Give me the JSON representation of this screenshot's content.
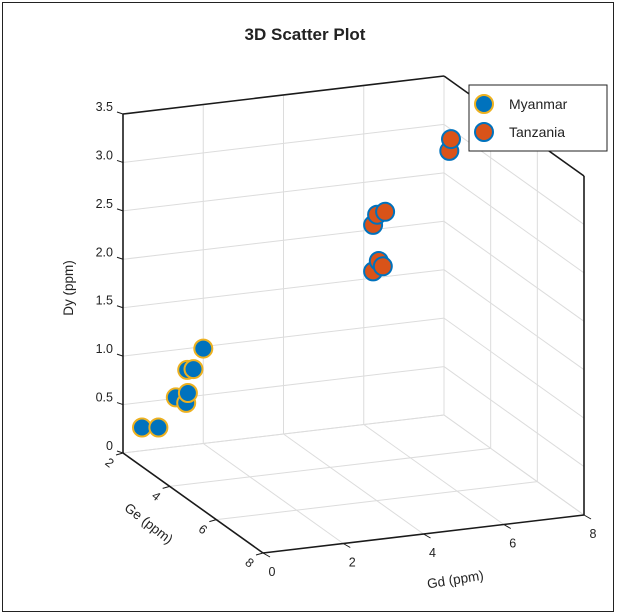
{
  "chart_data": {
    "type": "scatter",
    "subtype": "3d-scatter",
    "title": "3D Scatter Plot",
    "xlabel": "Gd (ppm)",
    "ylabel": "Ge (ppm)",
    "zlabel": "Dy (ppm)",
    "x_ticks": [
      "0",
      "2",
      "4",
      "6",
      "8"
    ],
    "y_ticks": [
      "2",
      "4",
      "6",
      "8"
    ],
    "z_ticks": [
      "0",
      "0.5",
      "1.0",
      "1.5",
      "2.0",
      "2.5",
      "3.0",
      "3.5"
    ],
    "xlim": [
      0,
      8
    ],
    "ylim": [
      2,
      8
    ],
    "zlim": [
      0,
      3.5
    ],
    "grid": true,
    "legend_position": "top-right",
    "series": [
      {
        "name": "Myanmar",
        "color": "#0072BD",
        "edge_color": "#EDB120",
        "points": [
          {
            "x": 0.3,
            "y": 2.3,
            "z": 0.3
          },
          {
            "x": 0.65,
            "y": 2.4,
            "z": 0.3
          },
          {
            "x": 1.2,
            "y": 2.2,
            "z": 0.55
          },
          {
            "x": 1.4,
            "y": 2.3,
            "z": 0.5
          },
          {
            "x": 1.5,
            "y": 2.2,
            "z": 0.58
          },
          {
            "x": 1.6,
            "y": 2.0,
            "z": 0.78
          },
          {
            "x": 1.7,
            "y": 2.1,
            "z": 0.8
          },
          {
            "x": 2.0,
            "y": 2.0,
            "z": 0.98
          }
        ]
      },
      {
        "name": "Tanzania",
        "color": "#D95319",
        "edge_color": "#0072BD",
        "points": [
          {
            "x": 6.0,
            "y": 2.4,
            "z": 2.13
          },
          {
            "x": 6.1,
            "y": 2.4,
            "z": 2.23
          },
          {
            "x": 6.3,
            "y": 2.4,
            "z": 2.25
          },
          {
            "x": 6.0,
            "y": 2.4,
            "z": 1.65
          },
          {
            "x": 6.2,
            "y": 2.3,
            "z": 1.73
          },
          {
            "x": 6.3,
            "y": 2.3,
            "z": 1.67
          },
          {
            "x": 7.9,
            "y": 2.4,
            "z": 2.8
          },
          {
            "x": 8.0,
            "y": 2.3,
            "z": 2.9
          }
        ]
      }
    ]
  }
}
